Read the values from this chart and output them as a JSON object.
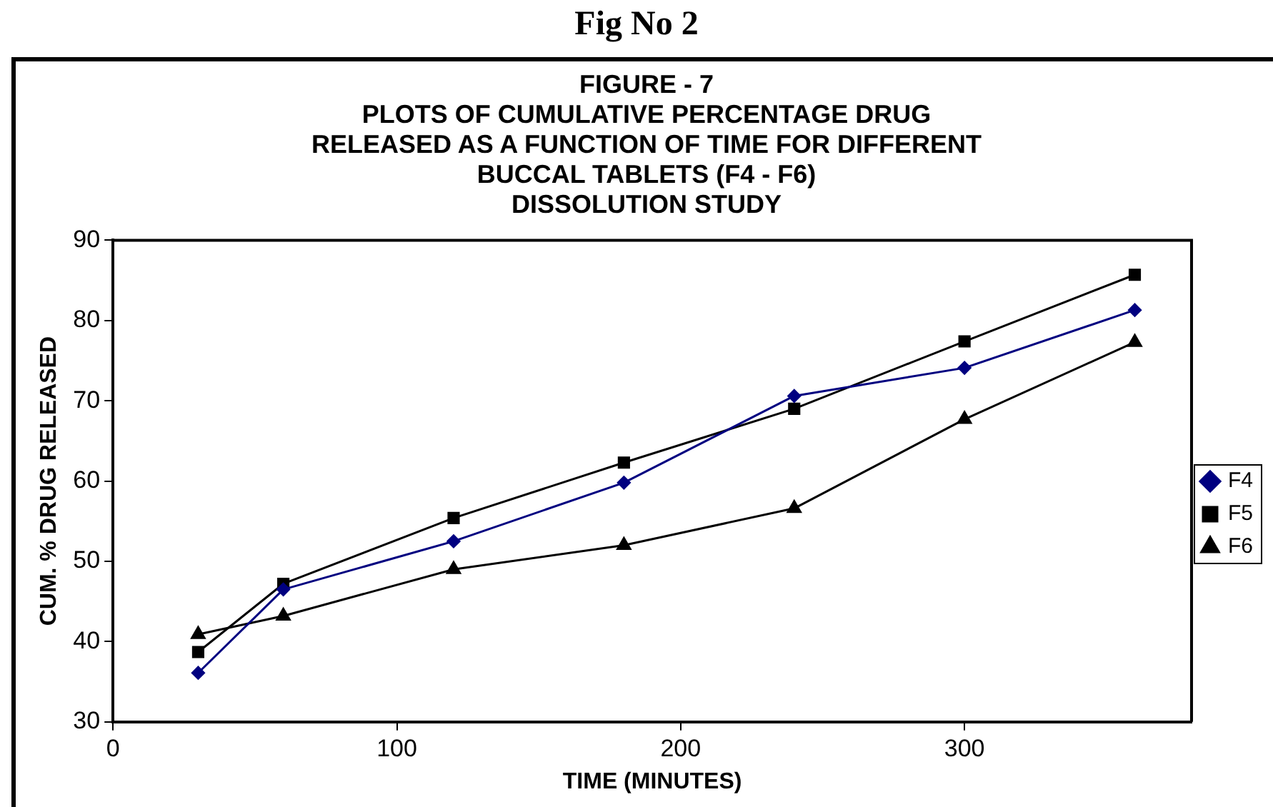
{
  "chart_data": {
    "type": "line",
    "title": "Fig No 2",
    "subtitle": "FIGURE - 7\nPLOTS OF CUMULATIVE PERCENTAGE DRUG\nRELEASED AS A FUNCTION OF TIME FOR DIFFERENT\nBUCCAL TABLETS (F4 - F6)\nDISSOLUTION STUDY",
    "xlabel": "TIME (MINUTES)",
    "ylabel": "CUM. % DRUG RELEASED",
    "x": [
      30,
      60,
      120,
      180,
      240,
      300,
      360
    ],
    "series": [
      {
        "name": "F4",
        "color": "#000080",
        "marker": "diamond",
        "values": [
          36.1,
          46.5,
          52.5,
          59.8,
          70.6,
          74.1,
          81.3
        ]
      },
      {
        "name": "F5",
        "color": "#000000",
        "marker": "square",
        "values": [
          38.7,
          47.2,
          55.4,
          62.3,
          69.0,
          77.4,
          85.7
        ]
      },
      {
        "name": "F6",
        "color": "#000000",
        "marker": "triangle",
        "values": [
          40.9,
          43.2,
          49.0,
          52.0,
          56.6,
          67.7,
          77.3
        ]
      }
    ],
    "xlim": [
      0,
      380
    ],
    "xticks": [
      0,
      100,
      200,
      300
    ],
    "ylim": [
      30,
      90
    ],
    "yticks": [
      30,
      40,
      50,
      60,
      70,
      80,
      90
    ],
    "grid": false,
    "legend": "right",
    "line_style": "solid"
  }
}
